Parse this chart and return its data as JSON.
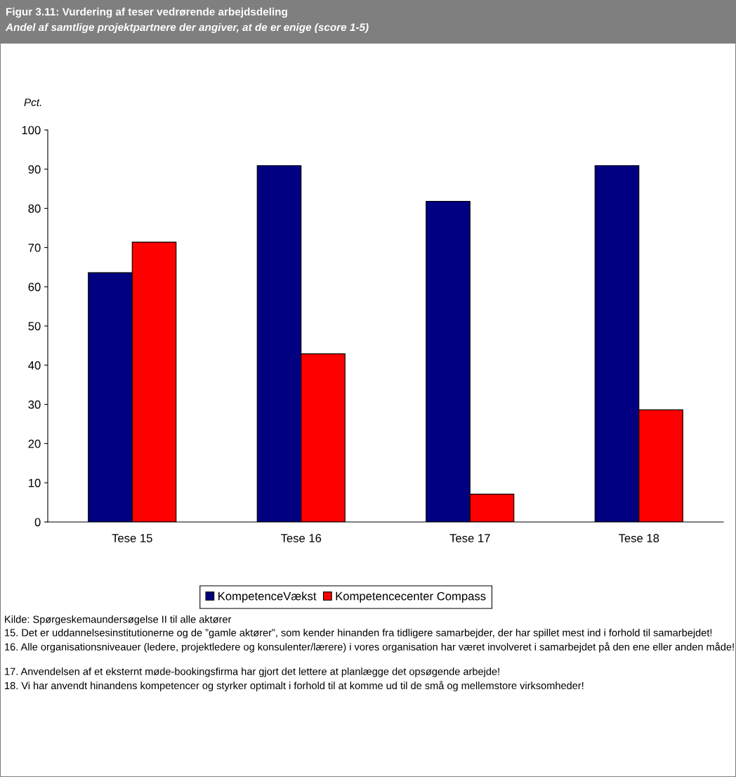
{
  "chart_data": {
    "type": "bar",
    "title": "Figur 3.11: Vurdering af teser vedrørende arbejdsdeling",
    "subtitle": "Andel af samtlige projektpartnere der angiver, at de er enige (score 1-5)",
    "ylabel": "Pct.",
    "categories": [
      "Tese 15",
      "Tese 16",
      "Tese 17",
      "Tese 18"
    ],
    "series": [
      {
        "name": "KompetenceVækst",
        "color": "#000080",
        "values": [
          63.6,
          90.9,
          81.8,
          90.9
        ]
      },
      {
        "name": "Kompetencecenter Compass",
        "color": "#ff0000",
        "values": [
          71.4,
          42.9,
          7.1,
          28.6
        ]
      }
    ],
    "ylim": [
      0,
      100
    ],
    "yticks": [
      0,
      10,
      20,
      30,
      40,
      50,
      60,
      70,
      80,
      90,
      100
    ],
    "grid": false,
    "legend": "bottom",
    "annotations": [
      "Kilde: Spørgeskemaundersøgelse II til alle aktører",
      "15. Det er uddannelsesinstitutionerne og de ”gamle aktører”, som kender hinanden fra tidligere samarbejder, der har spillet mest ind i forhold til samarbejdet!",
      "16. Alle organisationsniveauer (ledere, projektledere og konsulenter/lærere) i vores organisation har været involveret i samarbejdet på den ene eller anden måde!",
      "17. Anvendelsen af et eksternt møde-bookingsfirma har gjort det lettere at planlægge det opsøgende arbejde!",
      "18. Vi har anvendt hinandens kompetencer og styrker optimalt i forhold til at komme ud til de små og mellemstore virksomheder!"
    ]
  }
}
